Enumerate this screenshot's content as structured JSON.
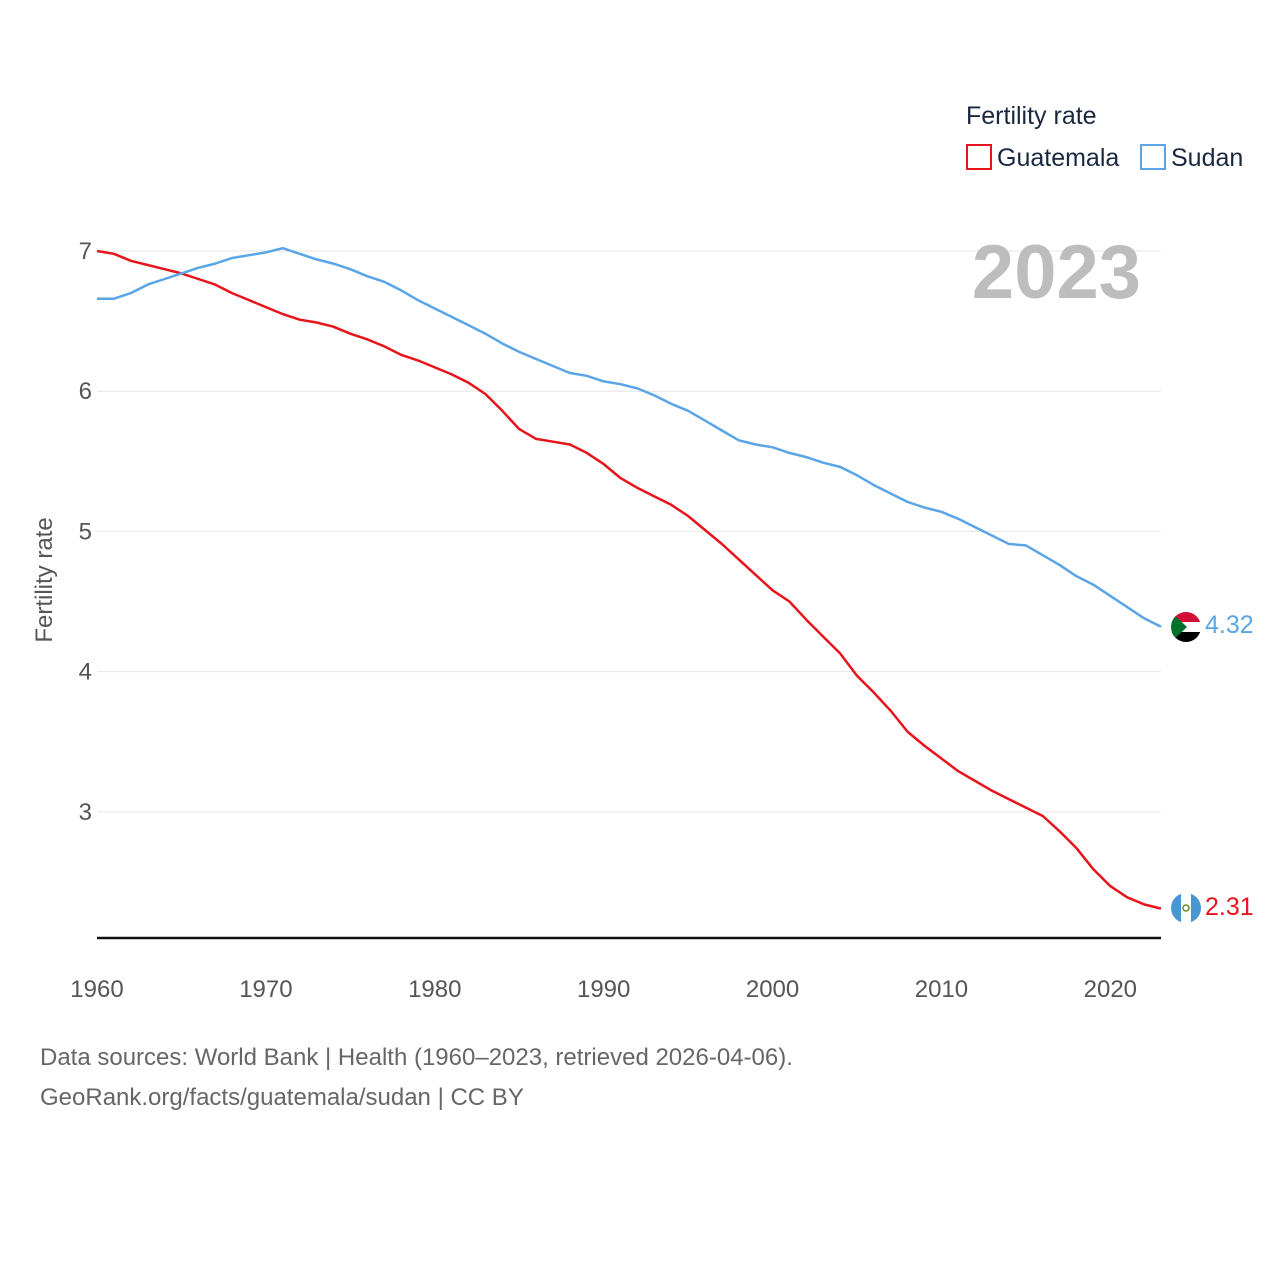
{
  "colors": {
    "guatemala": "#e8141b",
    "sudan": "#5aa5e6"
  },
  "legend": {
    "title": "Fertility rate",
    "items": [
      {
        "name": "Guatemala",
        "color": "#e8141b"
      },
      {
        "name": "Sudan",
        "color": "#5aa5e6"
      }
    ]
  },
  "year_display": "2023",
  "end_labels": {
    "guatemala": "2.31",
    "sudan": "4.32"
  },
  "icons": {
    "guatemala_flag": "guatemala-flag-icon",
    "sudan_flag": "sudan-flag-icon"
  },
  "footer": {
    "line1": "Data sources: World Bank | Health (1960–2023, retrieved 2026-04-06).",
    "line2": "GeoRank.org/facts/guatemala/sudan | CC BY"
  },
  "chart_data": {
    "type": "line",
    "title": "",
    "xlabel": "",
    "ylabel": "Fertility rate",
    "xlim": [
      1960,
      2023
    ],
    "ylim": [
      2.1,
      7.0
    ],
    "x_ticks": [
      1960,
      1970,
      1980,
      1990,
      2000,
      2010,
      2020
    ],
    "y_ticks": [
      3,
      4,
      5,
      6,
      7
    ],
    "grid": true,
    "legend_position": "top-right",
    "x": [
      1960,
      1961,
      1962,
      1963,
      1964,
      1965,
      1966,
      1967,
      1968,
      1969,
      1970,
      1971,
      1972,
      1973,
      1974,
      1975,
      1976,
      1977,
      1978,
      1979,
      1980,
      1981,
      1982,
      1983,
      1984,
      1985,
      1986,
      1987,
      1988,
      1989,
      1990,
      1991,
      1992,
      1993,
      1994,
      1995,
      1996,
      1997,
      1998,
      1999,
      2000,
      2001,
      2002,
      2003,
      2004,
      2005,
      2006,
      2007,
      2008,
      2009,
      2010,
      2011,
      2012,
      2013,
      2014,
      2015,
      2016,
      2017,
      2018,
      2019,
      2020,
      2021,
      2022,
      2023
    ],
    "series": [
      {
        "name": "Guatemala",
        "color": "#e8141b",
        "values": [
          7.0,
          6.98,
          6.93,
          6.9,
          6.87,
          6.84,
          6.8,
          6.76,
          6.7,
          6.65,
          6.6,
          6.55,
          6.51,
          6.49,
          6.46,
          6.41,
          6.37,
          6.32,
          6.26,
          6.22,
          6.17,
          6.12,
          6.06,
          5.98,
          5.86,
          5.73,
          5.66,
          5.64,
          5.62,
          5.56,
          5.48,
          5.38,
          5.31,
          5.25,
          5.19,
          5.11,
          5.01,
          4.91,
          4.8,
          4.69,
          4.58,
          4.5,
          4.37,
          4.25,
          4.13,
          3.97,
          3.85,
          3.72,
          3.57,
          3.47,
          3.38,
          3.29,
          3.22,
          3.15,
          3.09,
          3.03,
          2.97,
          2.86,
          2.74,
          2.59,
          2.47,
          2.39,
          2.34,
          2.31
        ]
      },
      {
        "name": "Sudan",
        "color": "#5aa5e6",
        "values": [
          6.66,
          6.66,
          6.7,
          6.76,
          6.8,
          6.84,
          6.88,
          6.91,
          6.95,
          6.97,
          6.99,
          7.02,
          6.98,
          6.94,
          6.91,
          6.87,
          6.82,
          6.78,
          6.72,
          6.65,
          6.59,
          6.53,
          6.47,
          6.41,
          6.34,
          6.28,
          6.23,
          6.18,
          6.13,
          6.11,
          6.07,
          6.05,
          6.02,
          5.97,
          5.91,
          5.86,
          5.79,
          5.72,
          5.65,
          5.62,
          5.6,
          5.56,
          5.53,
          5.49,
          5.46,
          5.4,
          5.33,
          5.27,
          5.21,
          5.17,
          5.14,
          5.09,
          5.03,
          4.97,
          4.91,
          4.9,
          4.83,
          4.76,
          4.68,
          4.62,
          4.54,
          4.46,
          4.38,
          4.32
        ]
      }
    ]
  }
}
